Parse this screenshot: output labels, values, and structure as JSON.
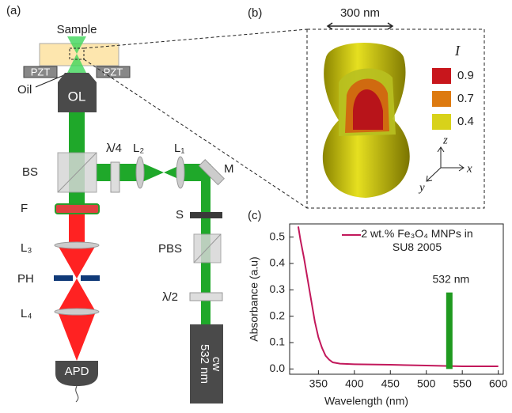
{
  "panel_a": {
    "label": "(a)",
    "sample": "Sample",
    "pzt_left": "PZT",
    "pzt_right": "PZT",
    "oil": "Oil",
    "objective": "OL",
    "beam_splitter": "BS",
    "quarter_wave": "λ/4",
    "lens_2": "L₂",
    "lens_1": "L₁",
    "mirror": "M",
    "shutter": "S",
    "pbs": "PBS",
    "half_wave": "λ/2",
    "filter": "F",
    "lens_3": "L₃",
    "pinhole": "PH",
    "lens_4": "L₄",
    "detector": "APD",
    "laser": [
      "532 nm",
      "cw"
    ]
  },
  "panel_b": {
    "label": "(b)",
    "scale": "300 nm",
    "intensity_title": "I",
    "legend": [
      {
        "value": 0.9,
        "color": "#c8161c"
      },
      {
        "value": 0.7,
        "color": "#dd7a10"
      },
      {
        "value": 0.4,
        "color": "#d8d21a"
      }
    ],
    "axes": [
      "z",
      "x",
      "y"
    ]
  },
  "chart_data": {
    "type": "line",
    "label": "(c)",
    "x_label": "Wavelength (nm)",
    "y_label": "Absorbance (a.u)",
    "x": [
      322,
      325,
      330,
      335,
      340,
      345,
      350,
      355,
      360,
      365,
      370,
      380,
      400,
      450,
      500,
      550,
      600
    ],
    "series": [
      {
        "name": "2 wt.% Fe₃O₄ MNPs in SU8 2005",
        "color": "#c2185b",
        "values": [
          0.54,
          0.49,
          0.42,
          0.34,
          0.26,
          0.18,
          0.12,
          0.08,
          0.05,
          0.035,
          0.025,
          0.02,
          0.018,
          0.016,
          0.013,
          0.01,
          0.01
        ]
      }
    ],
    "marker": {
      "x": 532,
      "value": 0.29,
      "label": "532 nm",
      "color": "#1f9a1f"
    },
    "xlim": [
      310,
      607
    ],
    "ylim": [
      -0.02,
      0.55
    ],
    "xticks": [
      350,
      400,
      450,
      500,
      550,
      600
    ],
    "yticks": [
      {
        "value": 0,
        "label": "0.0"
      },
      0.1,
      0.2,
      0.3,
      0.4,
      0.5
    ]
  }
}
